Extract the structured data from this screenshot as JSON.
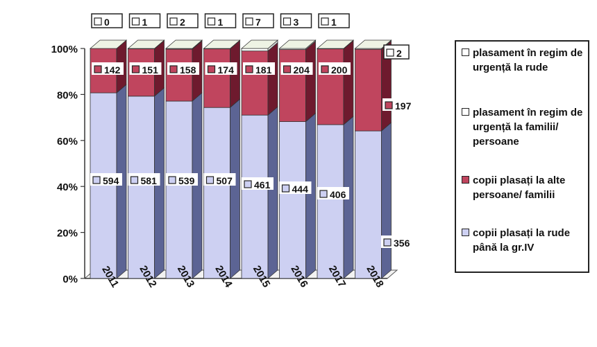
{
  "chart_data": {
    "type": "bar",
    "stacked": "100%",
    "style": "3d",
    "categories": [
      "2011",
      "2012",
      "2013",
      "2014",
      "2015",
      "2016",
      "2017",
      "2018"
    ],
    "series": [
      {
        "name": "copii plasați la rude până la gr.IV",
        "color": "#cdd0f2",
        "values": [
          594,
          581,
          539,
          507,
          461,
          444,
          406,
          356
        ]
      },
      {
        "name": "copii plasați la alte persoane/ familii",
        "color": "#c0455e",
        "values": [
          142,
          151,
          158,
          174,
          181,
          204,
          200,
          197
        ]
      },
      {
        "name": "plasament în regim de urgență la familii/ persoane",
        "color": "#ffffff",
        "values": [
          null,
          null,
          null,
          null,
          null,
          null,
          null,
          null
        ]
      },
      {
        "name": "plasament în regim de urgență la rude",
        "color": "#ffffff",
        "values": [
          0,
          1,
          2,
          1,
          7,
          3,
          1,
          2
        ]
      }
    ],
    "data_labels": {
      "rude": [
        "594",
        "581",
        "539",
        "507",
        "461",
        "444",
        "406",
        "356"
      ],
      "alte": [
        "142",
        "151",
        "158",
        "174",
        "181",
        "204",
        "200",
        "197"
      ],
      "urgenta": [
        "0",
        "1",
        "2",
        "1",
        "7",
        "3",
        "1",
        "2"
      ]
    },
    "y_ticks": [
      "0%",
      "20%",
      "40%",
      "60%",
      "80%",
      "100%"
    ],
    "ylim": [
      0,
      100
    ],
    "legend_position": "right"
  }
}
